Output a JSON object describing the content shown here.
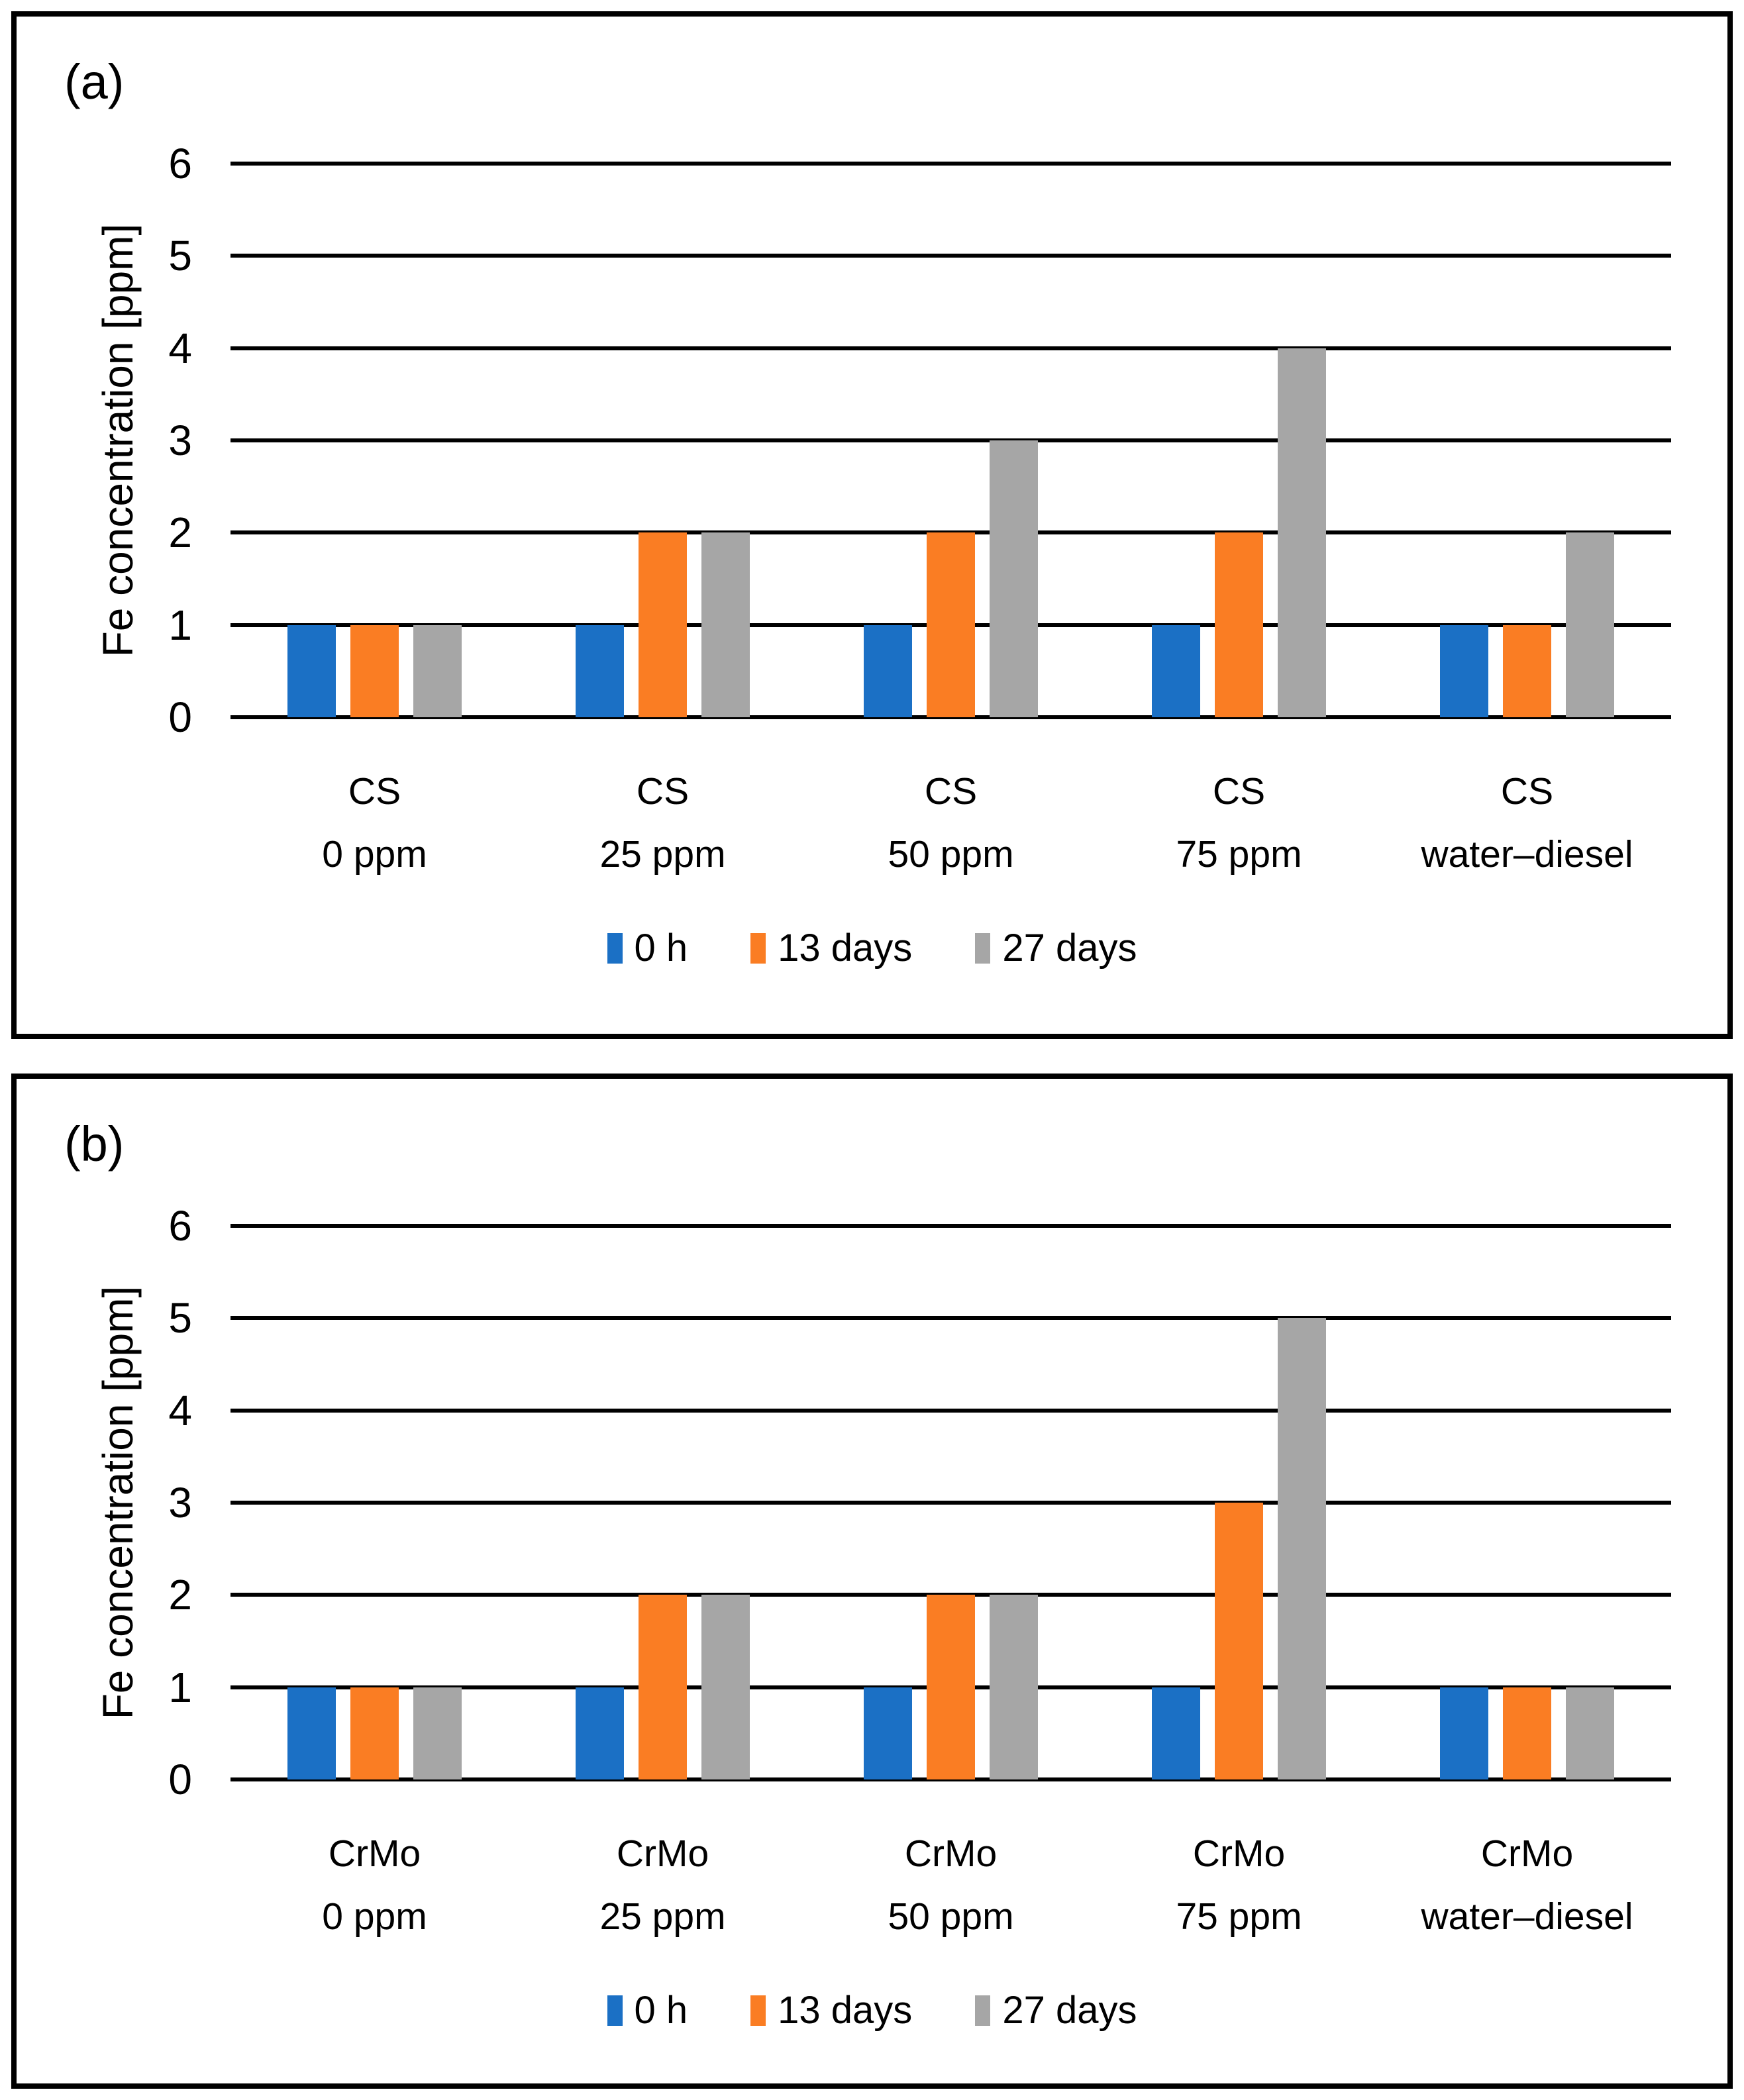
{
  "chart_data": [
    {
      "type": "bar",
      "panel_label": "(a)",
      "title": "",
      "xlabel": "",
      "ylabel": "Fe concentration [ppm]",
      "ylim": [
        0,
        6
      ],
      "ytick_step": 1,
      "grid": "on",
      "legend_position": "bottom",
      "categories": [
        "CS\n0 ppm",
        "CS\n25 ppm",
        "CS\n50 ppm",
        "CS\n75 ppm",
        "CS\nwater–diesel"
      ],
      "series": [
        {
          "name": "0 h",
          "color": "#1B70C5",
          "values": [
            1,
            1,
            1,
            1,
            1
          ]
        },
        {
          "name": "13 days",
          "color": "#FA7D23",
          "values": [
            1,
            2,
            2,
            2,
            1
          ]
        },
        {
          "name": "27 days",
          "color": "#A6A6A6",
          "values": [
            1,
            2,
            3,
            4,
            2
          ]
        }
      ]
    },
    {
      "type": "bar",
      "panel_label": "(b)",
      "title": "",
      "xlabel": "",
      "ylabel": "Fe concentration [ppm]",
      "ylim": [
        0,
        6
      ],
      "ytick_step": 1,
      "grid": "on",
      "legend_position": "bottom",
      "categories": [
        "CrMo\n0 ppm",
        "CrMo\n25 ppm",
        "CrMo\n50 ppm",
        "CrMo\n75 ppm",
        "CrMo\nwater–diesel"
      ],
      "series": [
        {
          "name": "0 h",
          "color": "#1B70C5",
          "values": [
            1,
            1,
            1,
            1,
            1
          ]
        },
        {
          "name": "13 days",
          "color": "#FA7D23",
          "values": [
            1,
            2,
            2,
            3,
            1
          ]
        },
        {
          "name": "27 days",
          "color": "#A6A6A6",
          "values": [
            1,
            2,
            2,
            5,
            1
          ]
        }
      ]
    }
  ]
}
